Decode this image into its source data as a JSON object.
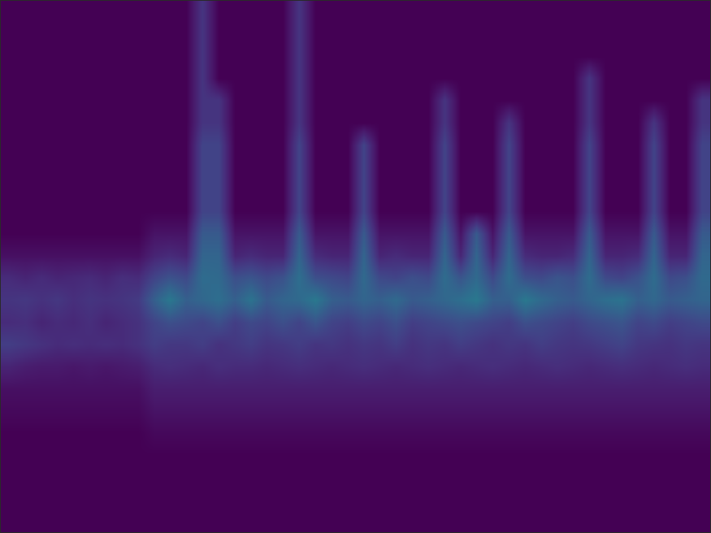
{
  "chart_data": {
    "type": "heatmap",
    "color": "Viridis",
    "tick_labels": false,
    "grid": false,
    "zlim": [
      0,
      1
    ],
    "xlim": [
      0,
      44
    ],
    "ylim": [
      24,
      0
    ],
    "x": [
      0,
      1,
      2,
      3,
      4,
      5,
      6,
      7,
      8,
      9,
      10,
      11,
      12,
      13,
      14,
      15,
      16,
      17,
      18,
      19,
      20,
      21,
      22,
      23,
      24,
      25,
      26,
      27,
      28,
      29,
      30,
      31,
      32,
      33,
      34,
      35,
      36,
      37,
      38,
      39,
      40,
      41,
      42,
      43,
      44
    ],
    "y": [
      0,
      1,
      2,
      3,
      4,
      5,
      6,
      7,
      8,
      9,
      10,
      11,
      12,
      13,
      14,
      15,
      16,
      17,
      18,
      19,
      20,
      21,
      22,
      23,
      24
    ],
    "cells": [
      [
        0,
        0,
        0,
        0,
        0,
        0,
        0,
        0,
        0,
        0,
        0,
        0,
        0.15,
        0,
        0,
        0,
        0,
        0,
        0.15,
        0,
        0,
        0,
        0,
        0,
        0,
        0,
        0,
        0,
        0,
        0,
        0,
        0,
        0,
        0,
        0,
        0,
        0,
        0,
        0,
        0,
        0,
        0,
        0,
        0
      ],
      [
        0,
        0,
        0,
        0,
        0,
        0,
        0,
        0,
        0,
        0,
        0,
        0,
        0.15,
        0,
        0,
        0,
        0,
        0,
        0.15,
        0,
        0,
        0,
        0,
        0,
        0,
        0,
        0,
        0,
        0,
        0,
        0,
        0,
        0,
        0,
        0,
        0,
        0,
        0,
        0,
        0,
        0,
        0,
        0,
        0
      ],
      [
        0,
        0,
        0,
        0,
        0,
        0,
        0,
        0,
        0,
        0,
        0,
        0,
        0.15,
        0,
        0,
        0,
        0,
        0,
        0.15,
        0,
        0,
        0,
        0,
        0,
        0,
        0,
        0,
        0,
        0,
        0,
        0,
        0,
        0,
        0,
        0,
        0,
        0,
        0,
        0,
        0,
        0,
        0,
        0,
        0
      ],
      [
        0,
        0,
        0,
        0,
        0,
        0,
        0,
        0,
        0,
        0,
        0,
        0,
        0.15,
        0,
        0,
        0,
        0,
        0,
        0.15,
        0,
        0,
        0,
        0,
        0,
        0,
        0,
        0,
        0,
        0,
        0,
        0,
        0,
        0,
        0,
        0,
        0,
        0.15,
        0,
        0,
        0,
        0,
        0,
        0,
        0
      ],
      [
        0,
        0,
        0,
        0,
        0,
        0,
        0,
        0,
        0,
        0,
        0,
        0,
        0.15,
        0.15,
        0,
        0,
        0,
        0,
        0.15,
        0,
        0,
        0,
        0,
        0,
        0,
        0,
        0,
        0.15,
        0,
        0,
        0,
        0,
        0,
        0,
        0,
        0,
        0.15,
        0,
        0,
        0,
        0,
        0,
        0,
        0.15
      ],
      [
        0,
        0,
        0,
        0,
        0,
        0,
        0,
        0,
        0,
        0,
        0,
        0,
        0.15,
        0.15,
        0,
        0,
        0,
        0,
        0.15,
        0,
        0,
        0,
        0,
        0,
        0,
        0,
        0,
        0.15,
        0,
        0,
        0,
        0.15,
        0,
        0,
        0,
        0,
        0.15,
        0,
        0,
        0,
        0.15,
        0,
        0,
        0.15
      ],
      [
        0,
        0,
        0,
        0,
        0,
        0,
        0,
        0,
        0,
        0,
        0,
        0,
        0.2,
        0.2,
        0,
        0,
        0,
        0,
        0.2,
        0,
        0,
        0,
        0.2,
        0,
        0,
        0,
        0,
        0.2,
        0,
        0,
        0,
        0.2,
        0,
        0,
        0,
        0,
        0.2,
        0,
        0,
        0,
        0.2,
        0,
        0,
        0.2
      ],
      [
        0,
        0,
        0,
        0,
        0,
        0,
        0,
        0,
        0,
        0,
        0,
        0,
        0.2,
        0.2,
        0,
        0,
        0,
        0,
        0.2,
        0,
        0,
        0,
        0.2,
        0,
        0,
        0,
        0,
        0.2,
        0,
        0,
        0,
        0.2,
        0,
        0,
        0,
        0,
        0.2,
        0,
        0,
        0,
        0.2,
        0,
        0,
        0.2
      ],
      [
        0,
        0,
        0,
        0,
        0,
        0,
        0,
        0,
        0,
        0,
        0,
        0,
        0.2,
        0.2,
        0,
        0,
        0,
        0,
        0.2,
        0,
        0,
        0,
        0.2,
        0,
        0,
        0,
        0,
        0.2,
        0,
        0,
        0,
        0.2,
        0,
        0,
        0,
        0,
        0.2,
        0,
        0,
        0,
        0.2,
        0,
        0,
        0.2
      ],
      [
        0,
        0,
        0,
        0,
        0,
        0,
        0,
        0,
        0,
        0,
        0,
        0,
        0.2,
        0.2,
        0,
        0,
        0,
        0,
        0.2,
        0,
        0,
        0,
        0.2,
        0,
        0,
        0,
        0,
        0.2,
        0,
        0,
        0,
        0.2,
        0,
        0,
        0,
        0,
        0.2,
        0,
        0,
        0,
        0.2,
        0,
        0,
        0.2
      ],
      [
        0,
        0,
        0,
        0,
        0,
        0,
        0,
        0,
        0,
        0.05,
        0.05,
        0.05,
        0.28,
        0.28,
        0.05,
        0.05,
        0.05,
        0.05,
        0.28,
        0.05,
        0.05,
        0.05,
        0.28,
        0.05,
        0.05,
        0.05,
        0.05,
        0.28,
        0.05,
        0.28,
        0.05,
        0.28,
        0.05,
        0.05,
        0.05,
        0.05,
        0.28,
        0.05,
        0.05,
        0.05,
        0.28,
        0.05,
        0.05,
        0.28
      ],
      [
        0.04,
        0.04,
        0.04,
        0.04,
        0.04,
        0.04,
        0.04,
        0.04,
        0.04,
        0.1,
        0.12,
        0.1,
        0.32,
        0.32,
        0.1,
        0.12,
        0.1,
        0.1,
        0.32,
        0.12,
        0.1,
        0.1,
        0.32,
        0.1,
        0.12,
        0.1,
        0.1,
        0.32,
        0.1,
        0.32,
        0.1,
        0.32,
        0.12,
        0.1,
        0.1,
        0.12,
        0.32,
        0.1,
        0.1,
        0.12,
        0.32,
        0.1,
        0.1,
        0.32
      ],
      [
        0.12,
        0.1,
        0.12,
        0.1,
        0.11,
        0.12,
        0.1,
        0.13,
        0.12,
        0.2,
        0.25,
        0.22,
        0.35,
        0.34,
        0.24,
        0.26,
        0.22,
        0.25,
        0.36,
        0.24,
        0.22,
        0.2,
        0.34,
        0.22,
        0.2,
        0.24,
        0.22,
        0.35,
        0.26,
        0.34,
        0.22,
        0.35,
        0.24,
        0.22,
        0.26,
        0.24,
        0.35,
        0.22,
        0.2,
        0.25,
        0.35,
        0.22,
        0.24,
        0.34
      ],
      [
        0.15,
        0.16,
        0.14,
        0.16,
        0.13,
        0.15,
        0.14,
        0.15,
        0.17,
        0.3,
        0.4,
        0.3,
        0.33,
        0.36,
        0.3,
        0.38,
        0.28,
        0.32,
        0.34,
        0.4,
        0.3,
        0.28,
        0.32,
        0.3,
        0.34,
        0.28,
        0.3,
        0.33,
        0.36,
        0.4,
        0.3,
        0.3,
        0.4,
        0.34,
        0.3,
        0.28,
        0.32,
        0.36,
        0.38,
        0.3,
        0.33,
        0.28,
        0.3,
        0.32
      ],
      [
        0.12,
        0.13,
        0.1,
        0.12,
        0.11,
        0.13,
        0.1,
        0.12,
        0.14,
        0.2,
        0.24,
        0.22,
        0.2,
        0.24,
        0.18,
        0.22,
        0.2,
        0.24,
        0.2,
        0.26,
        0.2,
        0.18,
        0.22,
        0.2,
        0.24,
        0.18,
        0.2,
        0.22,
        0.24,
        0.22,
        0.2,
        0.18,
        0.24,
        0.22,
        0.2,
        0.18,
        0.22,
        0.24,
        0.26,
        0.2,
        0.22,
        0.18,
        0.2,
        0.22
      ],
      [
        0.18,
        0.16,
        0.14,
        0.12,
        0.13,
        0.12,
        0.13,
        0.12,
        0.14,
        0.18,
        0.16,
        0.16,
        0.18,
        0.14,
        0.16,
        0.18,
        0.15,
        0.16,
        0.18,
        0.15,
        0.16,
        0.14,
        0.16,
        0.15,
        0.18,
        0.14,
        0.16,
        0.15,
        0.18,
        0.16,
        0.14,
        0.16,
        0.15,
        0.18,
        0.16,
        0.15,
        0.16,
        0.18,
        0.2,
        0.16,
        0.15,
        0.14,
        0.16,
        0.15
      ],
      [
        0.1,
        0.08,
        0.07,
        0.07,
        0.06,
        0.07,
        0.06,
        0.07,
        0.08,
        0.12,
        0.13,
        0.12,
        0.11,
        0.13,
        0.12,
        0.12,
        0.11,
        0.12,
        0.13,
        0.12,
        0.11,
        0.12,
        0.13,
        0.12,
        0.11,
        0.12,
        0.13,
        0.12,
        0.11,
        0.12,
        0.13,
        0.12,
        0.11,
        0.12,
        0.13,
        0.12,
        0.11,
        0.12,
        0.13,
        0.12,
        0.11,
        0.12,
        0.13,
        0.12
      ],
      [
        0.04,
        0.04,
        0.04,
        0.04,
        0.04,
        0.04,
        0.04,
        0.04,
        0.04,
        0.08,
        0.08,
        0.08,
        0.08,
        0.08,
        0.08,
        0.08,
        0.08,
        0.08,
        0.08,
        0.08,
        0.08,
        0.08,
        0.08,
        0.08,
        0.08,
        0.08,
        0.08,
        0.08,
        0.08,
        0.08,
        0.08,
        0.08,
        0.08,
        0.08,
        0.08,
        0.08,
        0.08,
        0.08,
        0.08,
        0.08,
        0.08,
        0.08,
        0.08,
        0.08
      ],
      [
        0.02,
        0.02,
        0.02,
        0.02,
        0.02,
        0.02,
        0.02,
        0.02,
        0.02,
        0.05,
        0.05,
        0.05,
        0.05,
        0.05,
        0.05,
        0.05,
        0.05,
        0.05,
        0.05,
        0.05,
        0.05,
        0.05,
        0.05,
        0.05,
        0.05,
        0.05,
        0.05,
        0.05,
        0.05,
        0.05,
        0.05,
        0.05,
        0.05,
        0.05,
        0.05,
        0.05,
        0.05,
        0.05,
        0.05,
        0.05,
        0.05,
        0.05,
        0.05,
        0.05
      ],
      [
        0,
        0,
        0,
        0,
        0,
        0,
        0,
        0,
        0,
        0.02,
        0.02,
        0.02,
        0.02,
        0.02,
        0.02,
        0.02,
        0.02,
        0.02,
        0.02,
        0.02,
        0.02,
        0.02,
        0.02,
        0.02,
        0.02,
        0.02,
        0.02,
        0.02,
        0.02,
        0.02,
        0.02,
        0.02,
        0.02,
        0.02,
        0.02,
        0.02,
        0.02,
        0.02,
        0.02,
        0.02,
        0.02,
        0.02,
        0.02,
        0.02
      ],
      [
        0,
        0,
        0,
        0,
        0,
        0,
        0,
        0,
        0,
        0,
        0,
        0,
        0,
        0,
        0,
        0,
        0,
        0,
        0,
        0,
        0,
        0,
        0,
        0,
        0,
        0,
        0,
        0,
        0,
        0,
        0,
        0,
        0,
        0,
        0,
        0,
        0,
        0,
        0,
        0,
        0,
        0,
        0,
        0
      ],
      [
        0,
        0,
        0,
        0,
        0,
        0,
        0,
        0,
        0,
        0,
        0,
        0,
        0,
        0,
        0,
        0,
        0,
        0,
        0,
        0,
        0,
        0,
        0,
        0,
        0,
        0,
        0,
        0,
        0,
        0,
        0,
        0,
        0,
        0,
        0,
        0,
        0,
        0,
        0,
        0,
        0,
        0,
        0,
        0
      ],
      [
        0,
        0,
        0,
        0,
        0,
        0,
        0,
        0,
        0,
        0,
        0,
        0,
        0,
        0,
        0,
        0,
        0,
        0,
        0,
        0,
        0,
        0,
        0,
        0,
        0,
        0,
        0,
        0,
        0,
        0,
        0,
        0,
        0,
        0,
        0,
        0,
        0,
        0,
        0,
        0,
        0,
        0,
        0,
        0
      ],
      [
        0,
        0,
        0,
        0,
        0,
        0,
        0,
        0,
        0,
        0,
        0,
        0,
        0,
        0,
        0,
        0,
        0,
        0,
        0,
        0,
        0,
        0,
        0,
        0,
        0,
        0,
        0,
        0,
        0,
        0,
        0,
        0,
        0,
        0,
        0,
        0,
        0,
        0,
        0,
        0,
        0,
        0,
        0,
        0
      ]
    ]
  }
}
